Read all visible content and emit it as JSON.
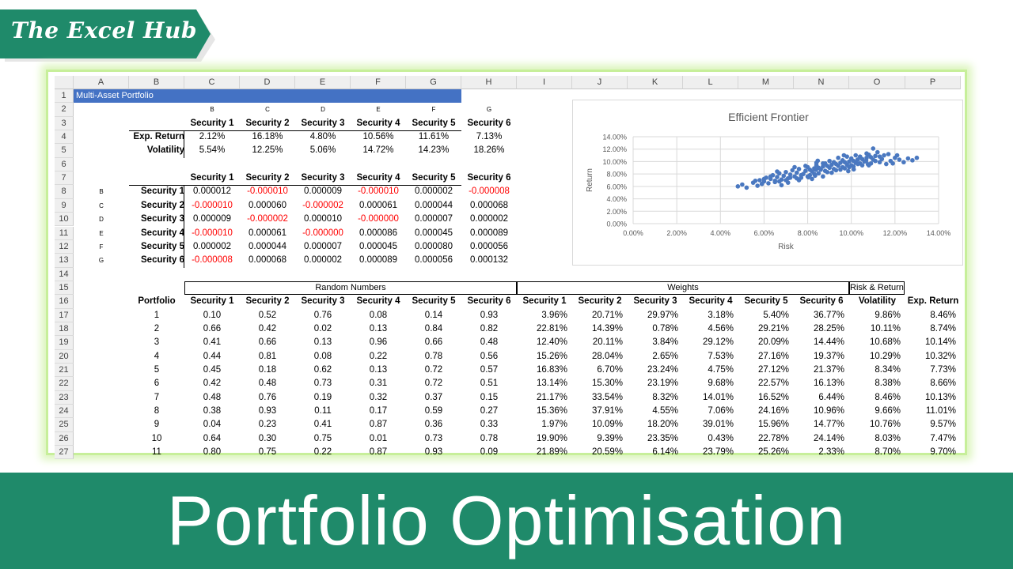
{
  "brand": {
    "name": "The Excel Hub"
  },
  "page_title": "Portfolio Optimisation",
  "colors": {
    "band": "#1f8a6a",
    "glow": "#c7ef9a",
    "title_fill": "#4472c4",
    "marker": "#4a78c0",
    "negative": "#ff0000"
  },
  "sheet": {
    "columns": [
      "A",
      "B",
      "C",
      "D",
      "E",
      "F",
      "G",
      "H",
      "I",
      "J",
      "K",
      "L",
      "M",
      "N",
      "O",
      "P"
    ],
    "rows": [
      "1",
      "2",
      "3",
      "4",
      "5",
      "6",
      "7",
      "8",
      "9",
      "10",
      "11",
      "12",
      "13",
      "14",
      "15",
      "16",
      "17",
      "18",
      "19",
      "20",
      "21",
      "22",
      "23",
      "24",
      "25",
      "26",
      "27"
    ],
    "title": "Multi-Asset Portfolio",
    "letter_row": [
      "B",
      "C",
      "D",
      "E",
      "F",
      "G"
    ],
    "securities": [
      "Security 1",
      "Security 2",
      "Security 3",
      "Security 4",
      "Security 5",
      "Security 6"
    ],
    "stats": {
      "exp_label": "Exp. Return",
      "exp_values": [
        "2.12%",
        "16.18%",
        "4.80%",
        "10.56%",
        "11.61%",
        "7.13%"
      ],
      "vol_label": "Volatility",
      "vol_values": [
        "5.54%",
        "12.25%",
        "5.06%",
        "14.72%",
        "14.23%",
        "18.26%"
      ]
    },
    "covariance": {
      "row_letters": [
        "B",
        "C",
        "D",
        "E",
        "F",
        "G"
      ],
      "rows": [
        [
          "0.000012",
          "-0.000010",
          "0.000009",
          "-0.000010",
          "0.000002",
          "-0.000008"
        ],
        [
          "-0.000010",
          "0.000060",
          "-0.000002",
          "0.000061",
          "0.000044",
          "0.000068"
        ],
        [
          "0.000009",
          "-0.000002",
          "0.000010",
          "-0.000000",
          "0.000007",
          "0.000002"
        ],
        [
          "-0.000010",
          "0.000061",
          "-0.000000",
          "0.000086",
          "0.000045",
          "0.000089"
        ],
        [
          "0.000002",
          "0.000044",
          "0.000007",
          "0.000045",
          "0.000080",
          "0.000056"
        ],
        [
          "-0.000008",
          "0.000068",
          "0.000002",
          "0.000089",
          "0.000056",
          "0.000132"
        ]
      ]
    },
    "groups": {
      "random": "Random Numbers",
      "weights": "Weights",
      "riskret": "Risk & Return"
    },
    "sim_headers": {
      "portfolio": "Portfolio",
      "random": [
        "Security 1",
        "Security 2",
        "Security 3",
        "Security 4",
        "Security 5",
        "Security 6"
      ],
      "weights": [
        "Security 1",
        "Security 2",
        "Security 3",
        "Security 4",
        "Security 5",
        "Security 6"
      ],
      "volatility": "Volatility",
      "exp_return": "Exp. Return"
    },
    "sim_rows": [
      [
        "1",
        "0.10",
        "0.52",
        "0.76",
        "0.08",
        "0.14",
        "0.93",
        "3.96%",
        "20.71%",
        "29.97%",
        "3.18%",
        "5.40%",
        "36.77%",
        "9.86%",
        "8.46%"
      ],
      [
        "2",
        "0.66",
        "0.42",
        "0.02",
        "0.13",
        "0.84",
        "0.82",
        "22.81%",
        "14.39%",
        "0.78%",
        "4.56%",
        "29.21%",
        "28.25%",
        "10.11%",
        "8.74%"
      ],
      [
        "3",
        "0.41",
        "0.66",
        "0.13",
        "0.96",
        "0.66",
        "0.48",
        "12.40%",
        "20.11%",
        "3.84%",
        "29.12%",
        "20.09%",
        "14.44%",
        "10.68%",
        "10.14%"
      ],
      [
        "4",
        "0.44",
        "0.81",
        "0.08",
        "0.22",
        "0.78",
        "0.56",
        "15.26%",
        "28.04%",
        "2.65%",
        "7.53%",
        "27.16%",
        "19.37%",
        "10.29%",
        "10.32%"
      ],
      [
        "5",
        "0.45",
        "0.18",
        "0.62",
        "0.13",
        "0.72",
        "0.57",
        "16.83%",
        "6.70%",
        "23.24%",
        "4.75%",
        "27.12%",
        "21.37%",
        "8.34%",
        "7.73%"
      ],
      [
        "6",
        "0.42",
        "0.48",
        "0.73",
        "0.31",
        "0.72",
        "0.51",
        "13.14%",
        "15.30%",
        "23.19%",
        "9.68%",
        "22.57%",
        "16.13%",
        "8.38%",
        "8.66%"
      ],
      [
        "7",
        "0.48",
        "0.76",
        "0.19",
        "0.32",
        "0.37",
        "0.15",
        "21.17%",
        "33.54%",
        "8.32%",
        "14.01%",
        "16.52%",
        "6.44%",
        "8.46%",
        "10.13%"
      ],
      [
        "8",
        "0.38",
        "0.93",
        "0.11",
        "0.17",
        "0.59",
        "0.27",
        "15.36%",
        "37.91%",
        "4.55%",
        "7.06%",
        "24.16%",
        "10.96%",
        "9.66%",
        "11.01%"
      ],
      [
        "9",
        "0.04",
        "0.23",
        "0.41",
        "0.87",
        "0.36",
        "0.33",
        "1.97%",
        "10.09%",
        "18.20%",
        "39.01%",
        "15.96%",
        "14.77%",
        "10.76%",
        "9.57%"
      ],
      [
        "10",
        "0.64",
        "0.30",
        "0.75",
        "0.01",
        "0.73",
        "0.78",
        "19.90%",
        "9.39%",
        "23.35%",
        "0.43%",
        "22.78%",
        "24.14%",
        "8.03%",
        "7.47%"
      ],
      [
        "11",
        "0.80",
        "0.75",
        "0.22",
        "0.87",
        "0.93",
        "0.09",
        "21.89%",
        "20.59%",
        "6.14%",
        "23.79%",
        "25.26%",
        "2.33%",
        "8.70%",
        "9.70%"
      ]
    ]
  },
  "chart_data": {
    "type": "scatter",
    "title": "Efficient Frontier",
    "xlabel": "Risk",
    "ylabel": "Return",
    "xlim": [
      0,
      0.14
    ],
    "ylim": [
      0,
      0.14
    ],
    "x_ticks": [
      "0.00%",
      "2.00%",
      "4.00%",
      "6.00%",
      "8.00%",
      "10.00%",
      "12.00%",
      "14.00%"
    ],
    "y_ticks": [
      "0.00%",
      "2.00%",
      "4.00%",
      "6.00%",
      "8.00%",
      "10.00%",
      "12.00%",
      "14.00%"
    ],
    "grid": true,
    "series": [
      {
        "points": [
          [
            0.0986,
            0.0846
          ],
          [
            0.1011,
            0.0874
          ],
          [
            0.1068,
            0.1014
          ],
          [
            0.1029,
            0.1032
          ],
          [
            0.0834,
            0.0773
          ],
          [
            0.0838,
            0.0866
          ],
          [
            0.0846,
            0.1013
          ],
          [
            0.0966,
            0.1101
          ],
          [
            0.1076,
            0.0957
          ],
          [
            0.0803,
            0.0747
          ],
          [
            0.087,
            0.097
          ],
          [
            0.048,
            0.06
          ],
          [
            0.05,
            0.063
          ],
          [
            0.052,
            0.058
          ],
          [
            0.055,
            0.066
          ],
          [
            0.057,
            0.061
          ],
          [
            0.058,
            0.07
          ],
          [
            0.06,
            0.068
          ],
          [
            0.061,
            0.074
          ],
          [
            0.062,
            0.065
          ],
          [
            0.063,
            0.072
          ],
          [
            0.064,
            0.078
          ],
          [
            0.065,
            0.069
          ],
          [
            0.066,
            0.075
          ],
          [
            0.067,
            0.081
          ],
          [
            0.068,
            0.071
          ],
          [
            0.069,
            0.077
          ],
          [
            0.07,
            0.083
          ],
          [
            0.071,
            0.073
          ],
          [
            0.072,
            0.079
          ],
          [
            0.073,
            0.086
          ],
          [
            0.074,
            0.076
          ],
          [
            0.075,
            0.082
          ],
          [
            0.076,
            0.088
          ],
          [
            0.077,
            0.074
          ],
          [
            0.078,
            0.08
          ],
          [
            0.079,
            0.085
          ],
          [
            0.08,
            0.091
          ],
          [
            0.081,
            0.078
          ],
          [
            0.082,
            0.084
          ],
          [
            0.083,
            0.089
          ],
          [
            0.084,
            0.094
          ],
          [
            0.085,
            0.081
          ],
          [
            0.086,
            0.087
          ],
          [
            0.087,
            0.092
          ],
          [
            0.088,
            0.097
          ],
          [
            0.089,
            0.083
          ],
          [
            0.09,
            0.09
          ],
          [
            0.091,
            0.095
          ],
          [
            0.092,
            0.099
          ],
          [
            0.093,
            0.086
          ],
          [
            0.094,
            0.093
          ],
          [
            0.095,
            0.098
          ],
          [
            0.096,
            0.102
          ],
          [
            0.097,
            0.089
          ],
          [
            0.098,
            0.095
          ],
          [
            0.099,
            0.1
          ],
          [
            0.1,
            0.105
          ],
          [
            0.101,
            0.092
          ],
          [
            0.102,
            0.098
          ],
          [
            0.103,
            0.103
          ],
          [
            0.104,
            0.108
          ],
          [
            0.105,
            0.094
          ],
          [
            0.106,
            0.1
          ],
          [
            0.107,
            0.106
          ],
          [
            0.108,
            0.111
          ],
          [
            0.109,
            0.097
          ],
          [
            0.11,
            0.103
          ],
          [
            0.111,
            0.109
          ],
          [
            0.112,
            0.115
          ],
          [
            0.113,
            0.099
          ],
          [
            0.114,
            0.104
          ],
          [
            0.115,
            0.11
          ],
          [
            0.116,
            0.096
          ],
          [
            0.118,
            0.101
          ],
          [
            0.12,
            0.106
          ],
          [
            0.122,
            0.103
          ],
          [
            0.124,
            0.099
          ],
          [
            0.126,
            0.105
          ],
          [
            0.128,
            0.102
          ],
          [
            0.13,
            0.106
          ],
          [
            0.059,
            0.064
          ],
          [
            0.066,
            0.084
          ],
          [
            0.071,
            0.066
          ],
          [
            0.076,
            0.07
          ],
          [
            0.082,
            0.072
          ],
          [
            0.087,
            0.076
          ],
          [
            0.091,
            0.082
          ],
          [
            0.095,
            0.087
          ],
          [
            0.099,
            0.091
          ],
          [
            0.103,
            0.096
          ],
          [
            0.068,
            0.062
          ],
          [
            0.074,
            0.091
          ],
          [
            0.079,
            0.093
          ],
          [
            0.084,
            0.098
          ],
          [
            0.09,
            0.101
          ],
          [
            0.094,
            0.106
          ],
          [
            0.098,
            0.108
          ],
          [
            0.102,
            0.11
          ],
          [
            0.107,
            0.113
          ],
          [
            0.11,
            0.121
          ],
          [
            0.063,
            0.076
          ],
          [
            0.067,
            0.068
          ],
          [
            0.072,
            0.074
          ],
          [
            0.077,
            0.078
          ],
          [
            0.081,
            0.087
          ],
          [
            0.085,
            0.09
          ],
          [
            0.089,
            0.093
          ],
          [
            0.093,
            0.096
          ],
          [
            0.097,
            0.099
          ],
          [
            0.101,
            0.101
          ],
          [
            0.105,
            0.104
          ],
          [
            0.109,
            0.107
          ],
          [
            0.113,
            0.108
          ],
          [
            0.117,
            0.112
          ],
          [
            0.119,
            0.097
          ],
          [
            0.121,
            0.11
          ],
          [
            0.111,
            0.101
          ],
          [
            0.108,
            0.094
          ],
          [
            0.104,
            0.097
          ],
          [
            0.1,
            0.094
          ],
          [
            0.096,
            0.091
          ],
          [
            0.092,
            0.088
          ],
          [
            0.088,
            0.085
          ],
          [
            0.083,
            0.08
          ],
          [
            0.08,
            0.076
          ],
          [
            0.075,
            0.073
          ],
          [
            0.07,
            0.07
          ],
          [
            0.065,
            0.067
          ],
          [
            0.06,
            0.072
          ],
          [
            0.056,
            0.069
          ]
        ]
      }
    ]
  }
}
